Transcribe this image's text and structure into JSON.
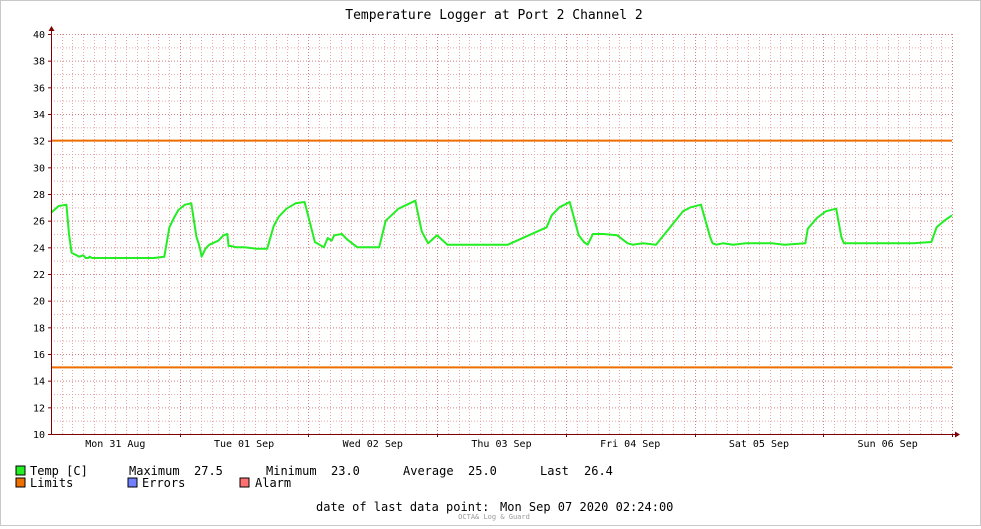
{
  "chart_data": {
    "type": "line",
    "title": "Temperature Logger at Port 2 Channel 2",
    "ylim": [
      10,
      40
    ],
    "yticks": [
      10,
      12,
      14,
      16,
      18,
      20,
      22,
      24,
      26,
      28,
      30,
      32,
      34,
      36,
      38,
      40
    ],
    "ytick_labels": [
      "10",
      "12",
      "14",
      "16",
      "18",
      "20",
      "22",
      "24",
      "26",
      "28",
      "30",
      "32",
      "34",
      "36",
      "38",
      "40"
    ],
    "x_days_range": [
      0,
      7
    ],
    "x_day_labels": [
      "Mon 31 Aug",
      "Tue 01 Sep",
      "Wed 02 Sep",
      "Thu 03 Sep",
      "Fri 04 Sep",
      "Sat 05 Sep",
      "Sun 06 Sep"
    ],
    "grid": true,
    "colors": {
      "temp": "#22ee22",
      "limits": "#ee6f00",
      "errors": "#7080ff",
      "alarm": "#ff7070",
      "grid": "#e8a8a8",
      "major_grid": "#d08080",
      "axis": "#800000"
    },
    "limits": [
      32,
      15
    ],
    "series": [
      {
        "name": "Temp [C]",
        "x": [
          0,
          0.06,
          0.12,
          0.14,
          0.16,
          0.22,
          0.25,
          0.27,
          0.29,
          0.3,
          0.32,
          0.4,
          0.5,
          0.6,
          0.7,
          0.8,
          0.88,
          0.92,
          0.96,
          0.99,
          1.04,
          1.09,
          1.13,
          1.15,
          1.16,
          1.17,
          1.2,
          1.23,
          1.3,
          1.34,
          1.37,
          1.38,
          1.4,
          1.44,
          1.5,
          1.6,
          1.68,
          1.73,
          1.77,
          1.83,
          1.9,
          1.97,
          2.05,
          2.12,
          2.15,
          2.18,
          2.2,
          2.26,
          2.3,
          2.38,
          2.44,
          2.51,
          2.55,
          2.6,
          2.7,
          2.83,
          2.88,
          2.93,
          3.0,
          3.08,
          3.12,
          3.16,
          3.21,
          3.25,
          3.29,
          3.32,
          3.4,
          3.48,
          3.55,
          3.85,
          3.89,
          3.95,
          4.03,
          4.1,
          4.14,
          4.17,
          4.21,
          4.24,
          4.29,
          4.4,
          4.48,
          4.52,
          4.6,
          4.7,
          4.86,
          4.91,
          4.97,
          5.05,
          5.12,
          5.14,
          5.17,
          5.22,
          5.3,
          5.4,
          5.5,
          5.6,
          5.7,
          5.86,
          5.88,
          5.95,
          6.02,
          6.1,
          6.14,
          6.16,
          6.2,
          6.3,
          6.4,
          6.5,
          6.6,
          6.7,
          6.84,
          6.88,
          6.94,
          7.0
        ],
        "values": [
          26.6,
          27.1,
          27.2,
          25.0,
          23.6,
          23.3,
          23.4,
          23.2,
          23.2,
          23.3,
          23.2,
          23.2,
          23.2,
          23.2,
          23.2,
          23.2,
          23.3,
          25.5,
          26.3,
          26.8,
          27.2,
          27.3,
          24.8,
          24.2,
          23.8,
          23.3,
          23.9,
          24.2,
          24.5,
          24.9,
          25.0,
          24.1,
          24.1,
          24.0,
          24.0,
          23.9,
          23.9,
          25.6,
          26.3,
          26.9,
          27.3,
          27.4,
          24.4,
          24.0,
          24.7,
          24.5,
          24.9,
          25.0,
          24.6,
          24.0,
          24.0,
          24.0,
          24.0,
          26.0,
          26.9,
          27.5,
          25.2,
          24.3,
          24.9,
          24.2,
          24.2,
          24.2,
          24.2,
          24.2,
          24.2,
          24.2,
          24.2,
          24.2,
          24.2,
          25.5,
          26.4,
          27.0,
          27.4,
          24.9,
          24.4,
          24.2,
          25.0,
          25.0,
          25.0,
          24.9,
          24.3,
          24.2,
          24.3,
          24.2,
          26.1,
          26.7,
          27.0,
          27.2,
          24.8,
          24.3,
          24.2,
          24.3,
          24.2,
          24.3,
          24.3,
          24.3,
          24.2,
          24.3,
          25.4,
          26.2,
          26.7,
          26.9,
          24.8,
          24.3,
          24.3,
          24.3,
          24.3,
          24.3,
          24.3,
          24.3,
          24.4,
          25.5,
          26.0,
          26.4
        ]
      }
    ],
    "legend": {
      "temp_label": "Temp [C]",
      "maximum_label": "Maximum",
      "maximum_value": "27.5",
      "minimum_label": "Minimum",
      "minimum_value": "23.0",
      "average_label": "Average",
      "average_value": "25.0",
      "last_label": "Last",
      "last_value": "26.4",
      "limits_label": "Limits",
      "errors_label": "Errors",
      "alarm_label": "Alarm"
    },
    "footer": {
      "date_label": "date of last data point:",
      "date_value": "Mon Sep 07 2020 02:24:00",
      "watermark": "OCTA& Log & Guard"
    }
  }
}
